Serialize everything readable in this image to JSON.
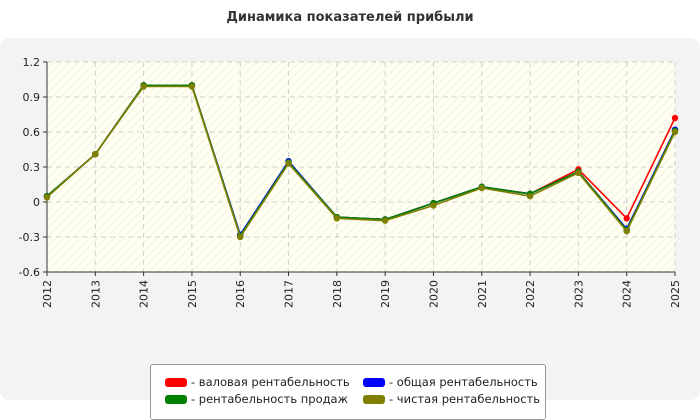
{
  "chart_data": {
    "type": "line",
    "title": "Динамика показателей прибыли",
    "xlabel": "",
    "ylabel": "",
    "x": [
      "2012",
      "2013",
      "2014",
      "2015",
      "2016",
      "2017",
      "2018",
      "2019",
      "2020",
      "2021",
      "2022",
      "2023",
      "2024",
      "2025"
    ],
    "ylim": [
      -0.6,
      1.2
    ],
    "yticks": [
      "1.2",
      "0.9",
      "0.6",
      "0.3",
      "0",
      "-0.3",
      "-0.6"
    ],
    "grid": true,
    "legend_position": "bottom",
    "series": [
      {
        "name": "- валовая рентабельность",
        "color": "#ff0000",
        "values": [
          0.05,
          0.41,
          1.0,
          1.0,
          -0.29,
          0.34,
          -0.13,
          -0.15,
          -0.01,
          0.13,
          0.07,
          0.28,
          -0.14,
          0.72
        ]
      },
      {
        "name": "- общая рентабельность",
        "color": "#0000ff",
        "values": [
          0.05,
          0.41,
          1.0,
          1.0,
          -0.28,
          0.35,
          -0.13,
          -0.15,
          -0.01,
          0.13,
          0.07,
          0.26,
          -0.23,
          0.62
        ]
      },
      {
        "name": "- рентабельность продаж",
        "color": "#008000",
        "values": [
          0.05,
          0.41,
          1.0,
          1.0,
          -0.29,
          0.34,
          -0.13,
          -0.15,
          -0.01,
          0.13,
          0.07,
          0.26,
          -0.24,
          0.61
        ]
      },
      {
        "name": "- чистая рентабельность",
        "color": "#808000",
        "values": [
          0.04,
          0.41,
          0.99,
          0.99,
          -0.3,
          0.33,
          -0.14,
          -0.16,
          -0.03,
          0.12,
          0.05,
          0.25,
          -0.25,
          0.6
        ]
      }
    ]
  }
}
